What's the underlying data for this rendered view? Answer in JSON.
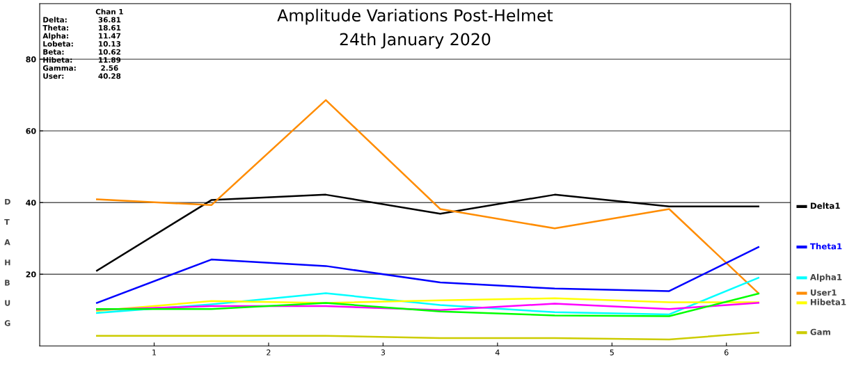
{
  "chart_data": {
    "type": "line",
    "title": "Amplitude Variations Post-Helmet",
    "subtitle": "24th January 2020",
    "x": [
      0.5,
      1.5,
      2.5,
      3.5,
      4.5,
      5.5,
      6.28
    ],
    "series": [
      {
        "name": "Delta1",
        "color": "#000000",
        "values": [
          21.0,
          40.7,
          42.2,
          36.9,
          42.2,
          38.9,
          38.9
        ]
      },
      {
        "name": "User1",
        "color": "#ff8c00",
        "values": [
          40.9,
          39.3,
          68.6,
          38.2,
          32.8,
          38.2,
          14.7
        ]
      },
      {
        "name": "Theta1",
        "color": "#0000ff",
        "values": [
          12.0,
          24.1,
          22.3,
          17.7,
          16.0,
          15.3,
          27.6
        ]
      },
      {
        "name": "Alpha1",
        "color": "#00ffff",
        "values": [
          9.2,
          11.6,
          14.7,
          11.4,
          9.4,
          8.8,
          19.0
        ]
      },
      {
        "name": "Hibeta1",
        "color": "#ffff00",
        "values": [
          9.8,
          12.5,
          12.0,
          12.7,
          13.3,
          12.2,
          12.2
        ]
      },
      {
        "color": "#ff00ff",
        "values": [
          10.1,
          11.1,
          11.1,
          10.0,
          11.8,
          10.3,
          12.0
        ]
      },
      {
        "color": "#00ff00",
        "values": [
          10.3,
          10.3,
          12.0,
          9.6,
          8.5,
          8.3,
          14.6
        ]
      },
      {
        "name": "Gam",
        "color": "#cccc00",
        "values": [
          2.8,
          2.8,
          2.8,
          2.2,
          2.2,
          1.8,
          3.7
        ]
      }
    ],
    "xlim": [
      0,
      6.56
    ],
    "xticks": [
      1,
      2,
      3,
      4,
      5,
      6
    ],
    "ylim": [
      0,
      95.5
    ],
    "yticks": [
      20,
      40,
      60,
      80
    ],
    "grid": "y",
    "legend": "right",
    "marker": "none",
    "line_style": "solid",
    "annotations": [
      "Chan 1",
      "Delta:",
      "36.81",
      "Theta:",
      "18.61",
      "Alpha:",
      "11.47",
      "Lobeta:",
      "10.13",
      "Beta:",
      "10.62",
      "Hibeta:",
      "11.89",
      "Gamma:",
      "2.56",
      "User:",
      "40.28",
      "D",
      "T",
      "A",
      "H",
      "B",
      "U",
      "G"
    ]
  }
}
